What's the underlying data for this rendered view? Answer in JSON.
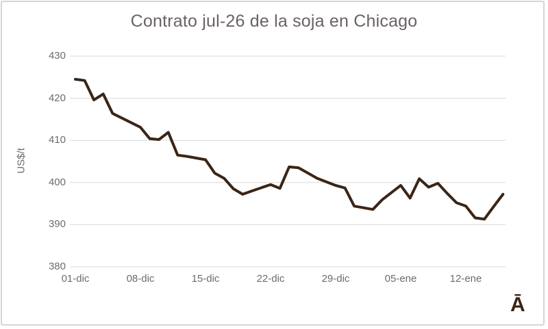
{
  "title": "Contrato jul-26 de la soja en Chicago",
  "corner_glyph": "Ā",
  "colors": {
    "line": "#3a2517",
    "title_text": "#6b6265",
    "axis_text": "#6f6a6b",
    "gridline": "#d9d9d9",
    "frame_border": "#d8d4d6",
    "background": "#ffffff"
  },
  "y_axis": {
    "label": "US$/t",
    "tick_values": [
      430,
      420,
      410,
      400,
      390,
      380
    ],
    "min": 380,
    "max": 430
  },
  "x_axis": {
    "tick_labels": [
      "01-dic",
      "08-dic",
      "15-dic",
      "22-dic",
      "29-dic",
      "05-ene",
      "12-ene"
    ],
    "tick_days": [
      0,
      7,
      14,
      21,
      28,
      35,
      42
    ]
  },
  "chart_data": {
    "type": "line",
    "title": "Contrato jul-26 de la soja en Chicago",
    "xlabel": "",
    "ylabel": "US$/t",
    "ylim": [
      380,
      430
    ],
    "x_tick_labels": [
      "01-dic",
      "08-dic",
      "15-dic",
      "22-dic",
      "29-dic",
      "05-ene",
      "12-ene"
    ],
    "x_unit": "days offset from 01-dic",
    "x_domain": [
      0,
      46
    ],
    "grid": "horizontal",
    "legend_position": "none",
    "series": [
      {
        "name": "Contrato jul-26 de la soja en Chicago (US$/t)",
        "points": [
          [
            0,
            424.5
          ],
          [
            1,
            424.2
          ],
          [
            2,
            419.6
          ],
          [
            3,
            421.0
          ],
          [
            4,
            416.4
          ],
          [
            5,
            415.3
          ],
          [
            7,
            413.1
          ],
          [
            8,
            410.4
          ],
          [
            9,
            410.2
          ],
          [
            10,
            411.9
          ],
          [
            11,
            406.5
          ],
          [
            12,
            406.2
          ],
          [
            14,
            405.4
          ],
          [
            15,
            402.2
          ],
          [
            16,
            401.0
          ],
          [
            17,
            398.5
          ],
          [
            18,
            397.2
          ],
          [
            19,
            398.0
          ],
          [
            21,
            399.5
          ],
          [
            22,
            398.6
          ],
          [
            23,
            403.7
          ],
          [
            24,
            403.5
          ],
          [
            26,
            401.0
          ],
          [
            28,
            399.3
          ],
          [
            29,
            398.7
          ],
          [
            30,
            394.4
          ],
          [
            32,
            393.6
          ],
          [
            33,
            395.9
          ],
          [
            35,
            399.3
          ],
          [
            36,
            396.3
          ],
          [
            37,
            400.9
          ],
          [
            38,
            398.9
          ],
          [
            39,
            399.8
          ],
          [
            40,
            397.4
          ],
          [
            41,
            395.2
          ],
          [
            42,
            394.4
          ],
          [
            43,
            391.6
          ],
          [
            44,
            391.3
          ],
          [
            45,
            394.3
          ],
          [
            46,
            397.2
          ]
        ]
      }
    ]
  }
}
